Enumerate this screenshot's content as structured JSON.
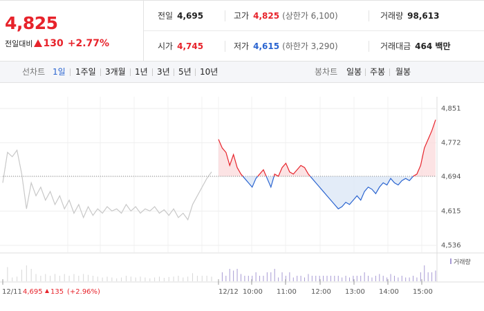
{
  "summary": {
    "price": "4,825",
    "change_label": "전일대비",
    "change_value": "130",
    "change_pct": "+2.77%",
    "prev_close_label": "전일",
    "prev_close": "4,695",
    "high_label": "고가",
    "high": "4,825",
    "upper_limit": "(상한가 6,100)",
    "volume_label": "거래량",
    "volume": "98,613",
    "open_label": "시가",
    "open": "4,745",
    "low_label": "저가",
    "low": "4,615",
    "lower_limit": "(하한가 3,290)",
    "amount_label": "거래대금",
    "amount": "464 백만"
  },
  "period_tabs": {
    "label": "선차트",
    "items": [
      "1일",
      "1주일",
      "3개월",
      "1년",
      "3년",
      "5년",
      "10년"
    ],
    "active": "1일"
  },
  "candle_tabs": {
    "label": "봉차트",
    "items": [
      "일봉",
      "주봉",
      "월봉"
    ]
  },
  "colors": {
    "up": "#e7232b",
    "down": "#2a64d0",
    "prev_day": "#c8c8c8",
    "volume": "#a79ad4"
  },
  "chart_data": {
    "type": "line",
    "ylim": [
      4536,
      4851
    ],
    "yticks": [
      "4,851",
      "4,772",
      "4,694",
      "4,615",
      "4,536"
    ],
    "baseline": 4695,
    "prev_day_label": "12/11",
    "prev_day_close": "4,695",
    "prev_day_change": "135",
    "prev_day_pct": "(+2.96%)",
    "x_labels": [
      "12/12",
      "10:00",
      "11:00",
      "12:00",
      "13:00",
      "14:00",
      "15:00"
    ],
    "volume_legend": "거래량",
    "prev_day_series": [
      4680,
      4750,
      4740,
      4755,
      4700,
      4620,
      4680,
      4650,
      4670,
      4640,
      4660,
      4630,
      4650,
      4620,
      4640,
      4610,
      4630,
      4600,
      4625,
      4605,
      4620,
      4610,
      4625,
      4615,
      4620,
      4610,
      4630,
      4615,
      4625,
      4610,
      4620,
      4615,
      4625,
      4610,
      4618,
      4605,
      4620,
      4600,
      4610,
      4595,
      4630,
      4650,
      4670,
      4690,
      4705
    ],
    "today_series": [
      4780,
      4760,
      4750,
      4720,
      4745,
      4715,
      4700,
      4690,
      4680,
      4670,
      4690,
      4700,
      4710,
      4690,
      4670,
      4700,
      4695,
      4715,
      4725,
      4705,
      4700,
      4710,
      4720,
      4715,
      4700,
      4690,
      4680,
      4670,
      4660,
      4650,
      4640,
      4630,
      4620,
      4625,
      4635,
      4630,
      4640,
      4650,
      4640,
      4660,
      4670,
      4665,
      4655,
      4670,
      4680,
      4675,
      4690,
      4680,
      4675,
      4685,
      4690,
      4685,
      4695,
      4700,
      4720,
      4760,
      4780,
      4800,
      4825
    ]
  }
}
